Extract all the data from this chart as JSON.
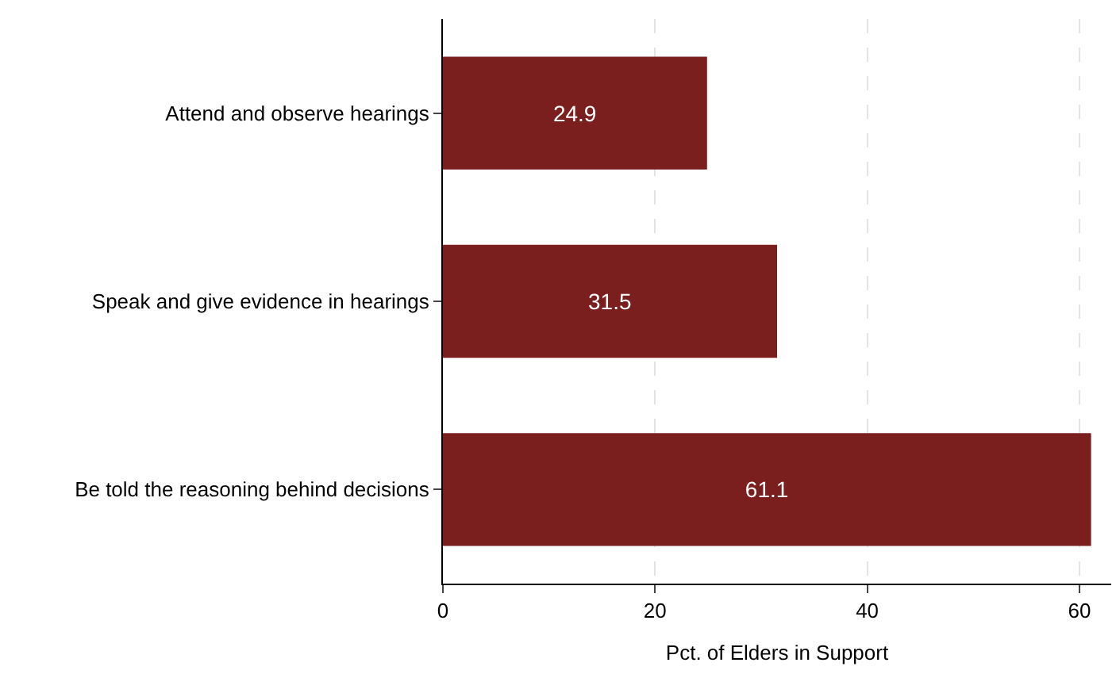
{
  "chart_data": {
    "type": "bar",
    "orientation": "horizontal",
    "xlabel": "Pct. of Elders in Support",
    "categories": [
      "Attend and observe hearings",
      "Speak and give evidence in hearings",
      "Be told the reasoning behind decisions"
    ],
    "values": [
      24.9,
      31.5,
      61.1
    ],
    "color": "#7b1e1e",
    "xlim": [
      0,
      63
    ],
    "xticks": [
      0,
      20,
      40,
      60
    ],
    "grid": "x",
    "data_labels": true
  }
}
